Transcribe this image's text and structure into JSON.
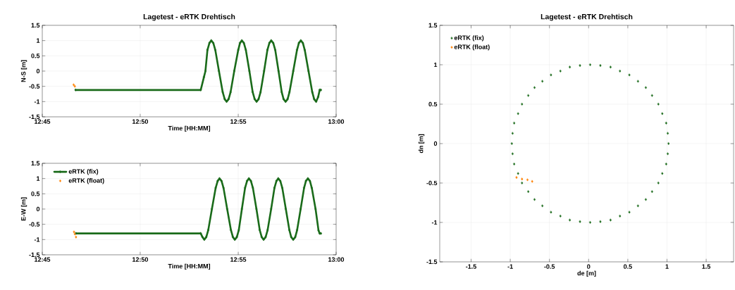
{
  "chart_data": [
    {
      "type": "scatter",
      "title": "Lagetest - eRTK Drehtisch",
      "xlabel": "Time [HH:MM]",
      "ylabel": "N-S [m]",
      "xlim": [
        12.75,
        13.0
      ],
      "ylim": [
        -1.5,
        1.5
      ],
      "xticks": [
        {
          "value": 12.75,
          "label": "12:45"
        },
        {
          "value": 12.8333,
          "label": "12:50"
        },
        {
          "value": 12.9167,
          "label": "12:55"
        },
        {
          "value": 13.0,
          "label": "13:00"
        }
      ],
      "yticks": [
        -1.5,
        -1,
        -0.5,
        0,
        0.5,
        1,
        1.5
      ],
      "grid": true,
      "marker": "diamond",
      "series": [
        {
          "type": "line",
          "color": "#1a6b1a",
          "x": [
            12.7783,
            12.8848,
            12.8875,
            12.8888,
            12.8905,
            12.8922,
            12.8938,
            12.8955,
            12.8972,
            12.9003,
            12.9035,
            12.9052,
            12.9068,
            12.9085,
            12.9102,
            12.9133,
            12.9167,
            12.9182,
            12.9198,
            12.9215,
            12.9232,
            12.9262,
            12.929,
            12.9307,
            12.9323,
            12.934,
            12.9357,
            12.9387,
            12.9415,
            12.9432,
            12.9448,
            12.9465,
            12.9482,
            12.951,
            12.9537,
            12.9553,
            12.957,
            12.9587,
            12.9603,
            12.9635,
            12.9667,
            12.9683,
            12.97,
            12.9717,
            12.9733,
            12.9765,
            12.9797,
            12.9813,
            12.983,
            12.9847,
            12.986,
            12.987
          ],
          "values": [
            -0.62,
            -0.62,
            -0.2,
            0.0,
            0.69,
            0.92,
            1.0,
            0.92,
            0.69,
            0.0,
            -0.69,
            -0.92,
            -1.0,
            -0.92,
            -0.69,
            0.0,
            0.69,
            0.92,
            1.0,
            0.92,
            0.69,
            0.0,
            -0.69,
            -0.92,
            -1.0,
            -0.92,
            -0.69,
            0.0,
            0.69,
            0.92,
            1.0,
            0.92,
            0.69,
            0.0,
            -0.69,
            -0.92,
            -1.0,
            -0.92,
            -0.69,
            0.0,
            0.69,
            0.92,
            1.0,
            0.92,
            0.69,
            0.0,
            -0.69,
            -0.92,
            -1.0,
            -0.85,
            -0.62,
            -0.62
          ]
        },
        {
          "color": "#ff8000",
          "x": [
            12.7767,
            12.7777
          ],
          "values": [
            -0.45,
            -0.5
          ]
        }
      ]
    },
    {
      "type": "scatter",
      "xlabel": "Time [HH:MM]",
      "ylabel": "E-W [m]",
      "xlim": [
        12.75,
        13.0
      ],
      "ylim": [
        -1.5,
        1.5
      ],
      "xticks": [
        {
          "value": 12.75,
          "label": "12:45"
        },
        {
          "value": 12.8333,
          "label": "12:50"
        },
        {
          "value": 12.9167,
          "label": "12:55"
        },
        {
          "value": 13.0,
          "label": "13:00"
        }
      ],
      "yticks": [
        -1.5,
        -1,
        -0.5,
        0,
        0.5,
        1,
        1.5
      ],
      "grid": true,
      "marker": "diamond",
      "legend": "top left",
      "series": [
        {
          "type": "line",
          "name": "eRTK (fix)",
          "color": "#1a6b1a",
          "x": [
            12.7787,
            12.8848,
            12.8863,
            12.8878,
            12.8895,
            12.8912,
            12.8943,
            12.8975,
            12.8992,
            12.9008,
            12.9025,
            12.9042,
            12.9073,
            12.9105,
            12.9122,
            12.9138,
            12.9155,
            12.9172,
            12.9198,
            12.9225,
            12.9242,
            12.9258,
            12.9275,
            12.9292,
            12.9322,
            12.935,
            12.9367,
            12.9383,
            12.94,
            12.9417,
            12.9447,
            12.9475,
            12.9492,
            12.9508,
            12.9525,
            12.9542,
            12.9572,
            12.9602,
            12.9618,
            12.9635,
            12.9652,
            12.9668,
            12.9698,
            12.9727,
            12.9743,
            12.976,
            12.9777,
            12.9793,
            12.9825,
            12.985,
            12.986,
            12.987
          ],
          "values": [
            -0.8,
            -0.8,
            -0.92,
            -1.0,
            -0.92,
            -0.69,
            0.0,
            0.69,
            0.92,
            1.0,
            0.92,
            0.69,
            0.0,
            -0.69,
            -0.92,
            -1.0,
            -0.92,
            -0.69,
            0.0,
            0.69,
            0.92,
            1.0,
            0.92,
            0.69,
            0.0,
            -0.69,
            -0.92,
            -1.0,
            -0.92,
            -0.69,
            0.0,
            0.69,
            0.92,
            1.0,
            0.92,
            0.69,
            0.0,
            -0.69,
            -0.92,
            -1.0,
            -0.92,
            -0.69,
            0.0,
            0.69,
            0.92,
            1.0,
            0.92,
            0.69,
            0.0,
            -0.7,
            -0.8,
            -0.8
          ]
        },
        {
          "name": "eRTK (float)",
          "color": "#ff8000",
          "x": [
            12.777,
            12.7777,
            12.7787
          ],
          "values": [
            -0.75,
            -0.82,
            -0.92
          ]
        }
      ]
    },
    {
      "type": "scatter",
      "title": "Lagetest - eRTK Drehtisch",
      "xlabel": "de [m]",
      "ylabel": "dn [m]",
      "xlim": [
        -1.9,
        1.85
      ],
      "ylim": [
        -1.5,
        1.5
      ],
      "xticks": [
        -1.5,
        -1,
        -0.5,
        0,
        0.5,
        1,
        1.5
      ],
      "yticks": [
        -1.5,
        -1,
        -0.5,
        0,
        0.5,
        1,
        1.5
      ],
      "grid": true,
      "marker": "diamond",
      "legend": "top left",
      "series": [
        {
          "name": "eRTK (fix)",
          "color": "#1a6b1a",
          "x": [
            1.02,
            1.01,
            0.99,
            0.94,
            0.89,
            0.81,
            0.73,
            0.63,
            0.52,
            0.4,
            0.28,
            0.15,
            0.02,
            -0.11,
            -0.24,
            -0.36,
            -0.48,
            -0.59,
            -0.69,
            -0.77,
            -0.85,
            -0.9,
            -0.95,
            -0.97,
            -0.98,
            -0.97,
            -0.95,
            -0.9,
            -0.85,
            -0.77,
            -0.69,
            -0.59,
            -0.48,
            -0.36,
            -0.24,
            -0.11,
            0.02,
            0.15,
            0.28,
            0.4,
            0.52,
            0.63,
            0.73,
            0.81,
            0.89,
            0.94,
            0.99,
            1.01
          ],
          "values": [
            0.0,
            0.13,
            0.26,
            0.38,
            0.5,
            0.61,
            0.71,
            0.79,
            0.87,
            0.92,
            0.97,
            0.99,
            1.0,
            0.99,
            0.97,
            0.92,
            0.87,
            0.79,
            0.71,
            0.61,
            0.5,
            0.38,
            0.26,
            0.13,
            0.0,
            -0.13,
            -0.26,
            -0.38,
            -0.5,
            -0.61,
            -0.71,
            -0.79,
            -0.87,
            -0.92,
            -0.97,
            -0.99,
            -1.0,
            -0.99,
            -0.97,
            -0.92,
            -0.87,
            -0.79,
            -0.71,
            -0.61,
            -0.5,
            -0.38,
            -0.26,
            -0.13
          ]
        },
        {
          "name": "eRTK (float)",
          "color": "#ff8000",
          "x": [
            -0.92,
            -0.85,
            -0.78,
            -0.72
          ],
          "values": [
            -0.43,
            -0.45,
            -0.46,
            -0.48
          ]
        }
      ]
    }
  ]
}
